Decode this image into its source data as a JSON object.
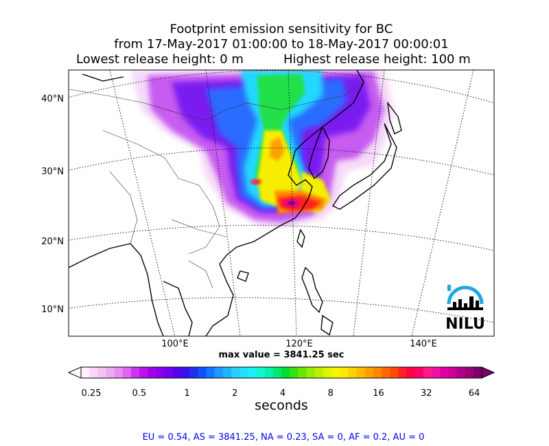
{
  "title": {
    "line1": "Footprint emission sensitivity for BC",
    "line2": "from 17-May-2017 01:00:00 to 18-May-2017 00:00:01",
    "line3_left": "Lowest release height: 0 m",
    "line3_right": "Highest release height: 100 m"
  },
  "map": {
    "lat_labels": [
      "40°N",
      "30°N",
      "20°N",
      "10°N"
    ],
    "lon_labels": [
      "100°E",
      "120°E",
      "140°E"
    ],
    "max_value_text": "max value = 3841.25 sec",
    "logo_text": "NILU",
    "logo_color": "#1fa8e0"
  },
  "colorbar": {
    "tick_labels": [
      "0.25",
      "0.5",
      "1",
      "2",
      "4",
      "8",
      "16",
      "32",
      "64"
    ],
    "units": "seconds",
    "colors": [
      "#fff0ff",
      "#fbd6fb",
      "#f5c2f5",
      "#eeaaf3",
      "#e88ef2",
      "#dd66f2",
      "#cc33ee",
      "#bb11ee",
      "#a000ee",
      "#8800ee",
      "#7000ee",
      "#5500ee",
      "#3a10ee",
      "#2030ee",
      "#1050ff",
      "#1477ff",
      "#1a9aff",
      "#20b4ff",
      "#2acbff",
      "#22e0ff",
      "#1af0f5",
      "#10f5d6",
      "#08f0a8",
      "#00e870",
      "#00dd30",
      "#33e010",
      "#66e800",
      "#99ee00",
      "#bbf000",
      "#ddf500",
      "#f5f500",
      "#ffe800",
      "#ffd200",
      "#ffbb00",
      "#ffa000",
      "#ff8800",
      "#ff6a00",
      "#ff4a00",
      "#ff2222",
      "#ff0044",
      "#ff0066",
      "#ff1a88",
      "#f011a0",
      "#e000a8",
      "#cc0099",
      "#b00088",
      "#990077",
      "#7a0066"
    ]
  },
  "regional_stats": "EU = 0.54,  AS = 3841.25,  NA = 0.23,  SA = 0,  AF = 0.2,  AU = 0"
}
